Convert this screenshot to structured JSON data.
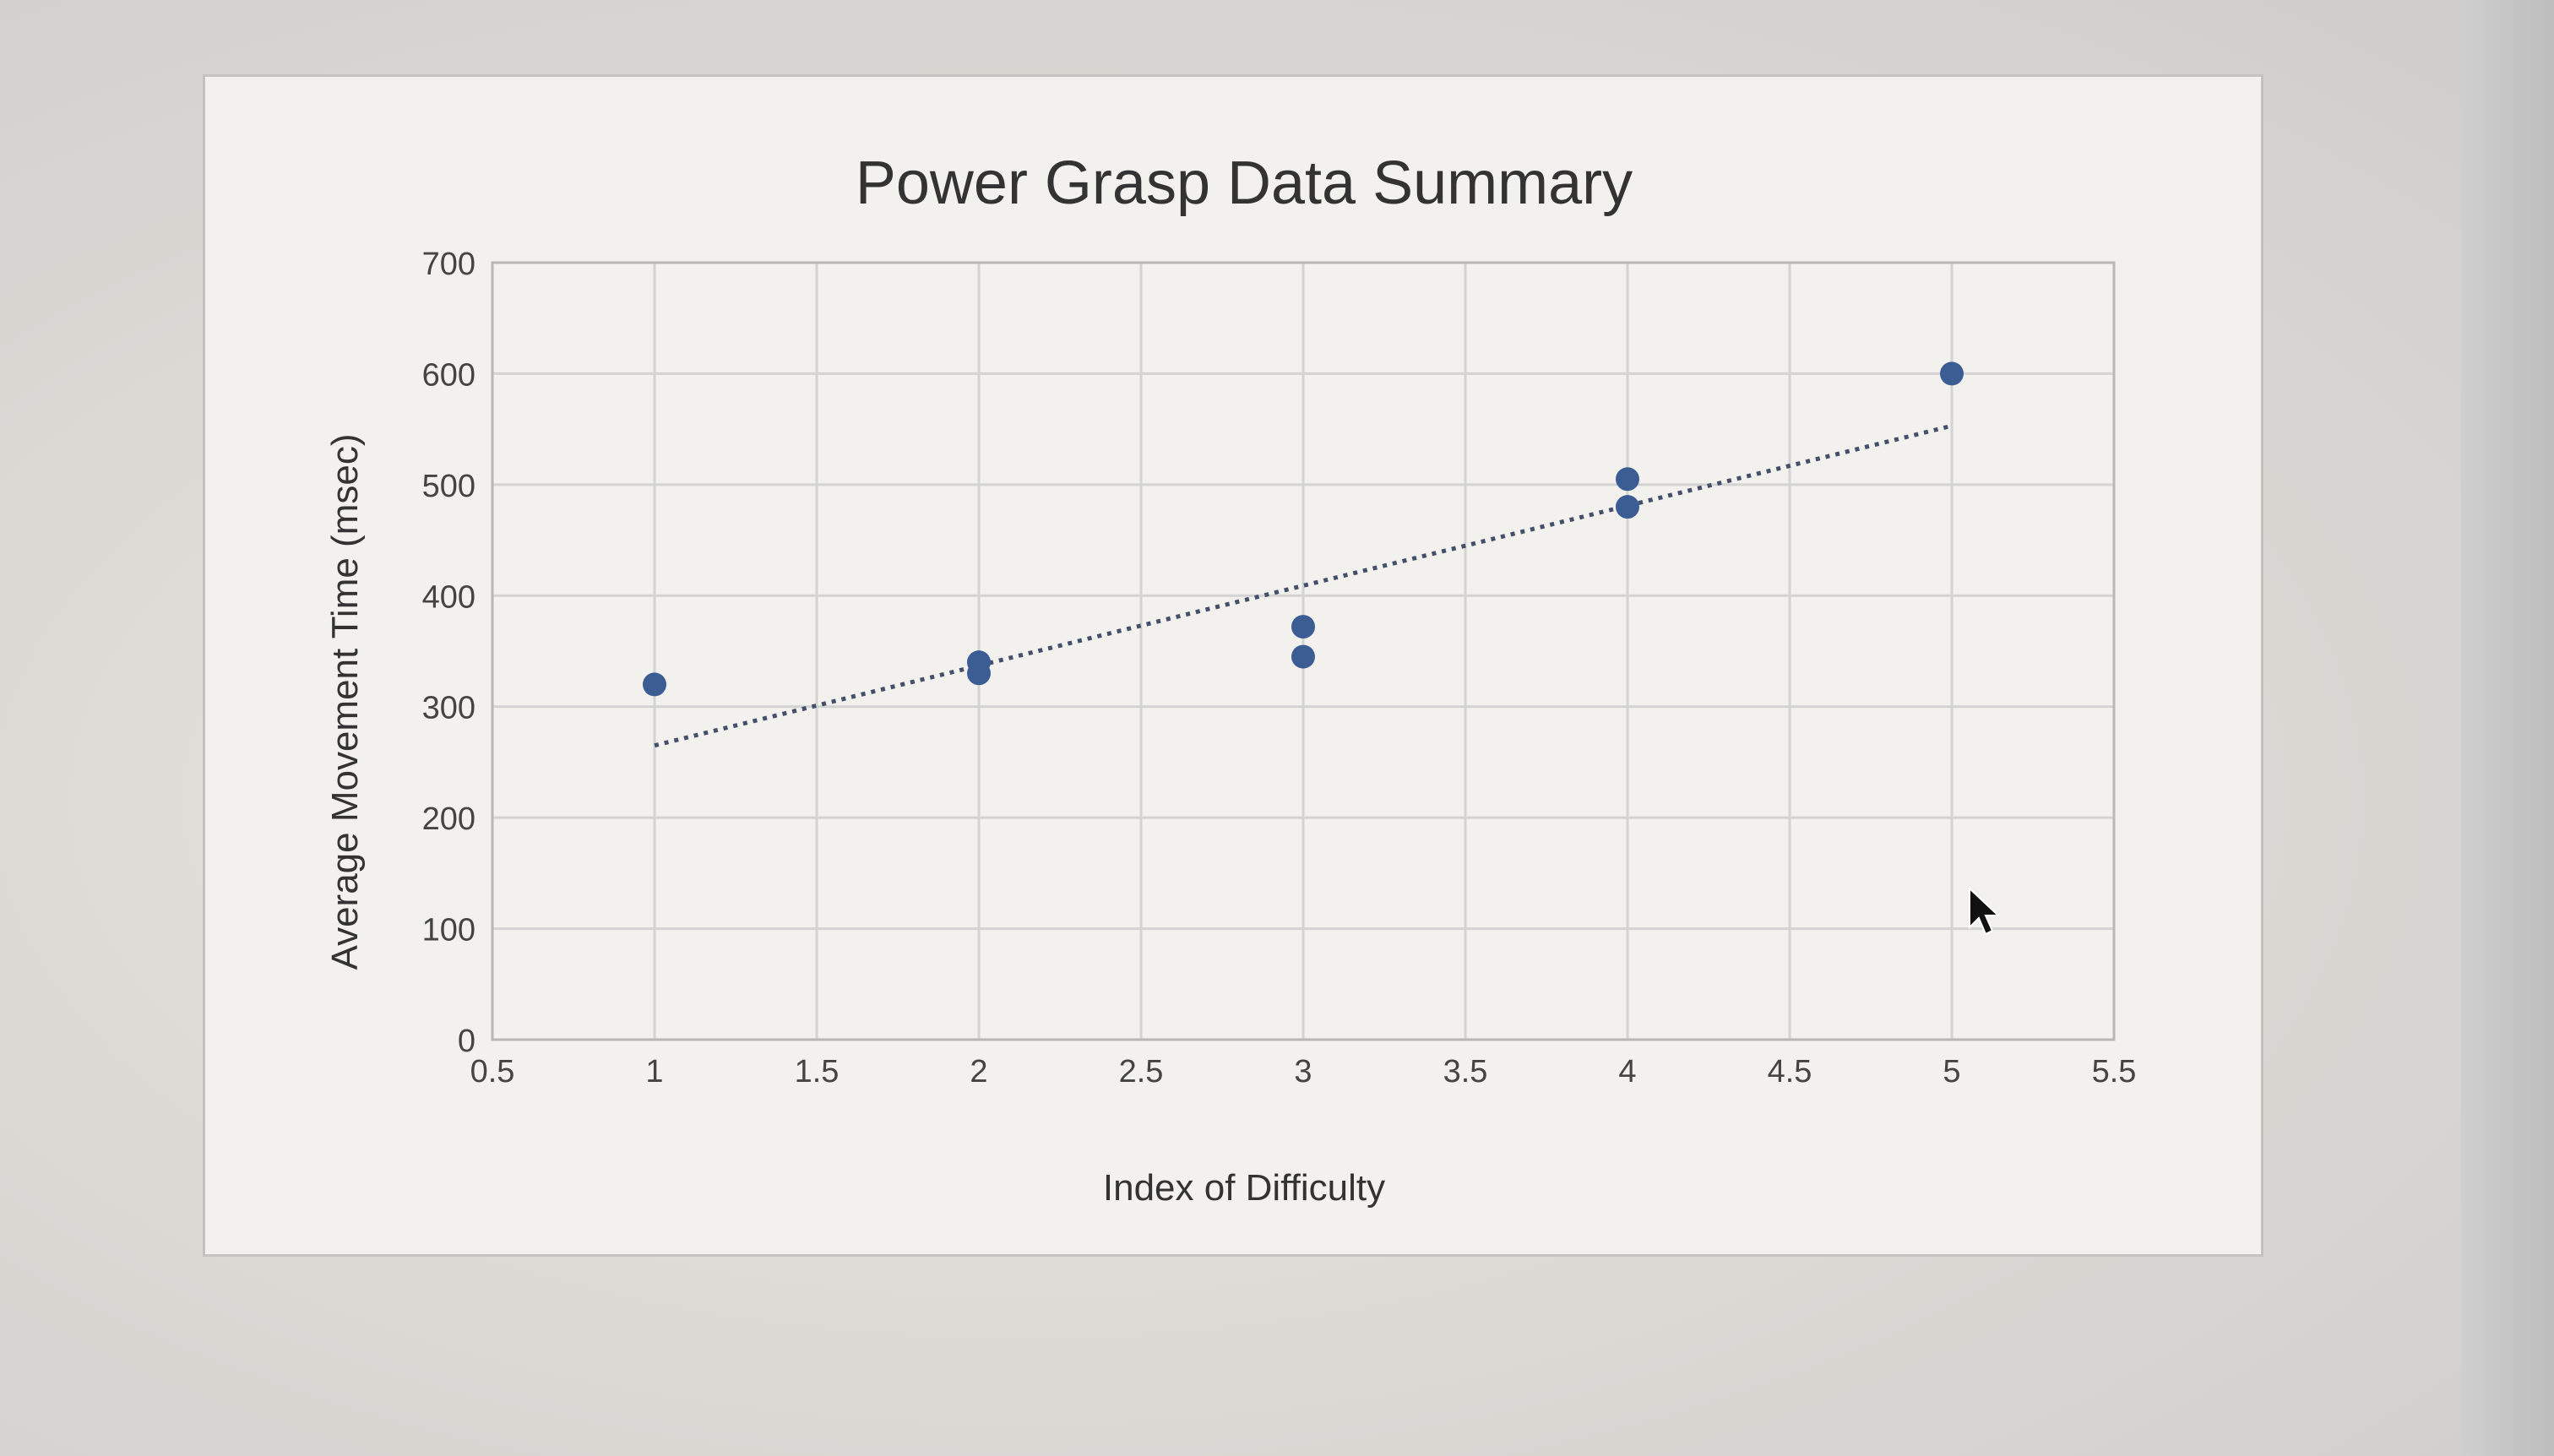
{
  "chart_data": {
    "type": "scatter",
    "title": "Power Grasp Data Summary",
    "xlabel": "Index of Difficulty",
    "ylabel": "Average Movement Time (msec)",
    "xlim": [
      0.5,
      5.5
    ],
    "ylim": [
      0,
      700
    ],
    "x_ticks": [
      "0.5",
      "1",
      "1.5",
      "2",
      "2.5",
      "3",
      "3.5",
      "4",
      "4.5",
      "5",
      "5.5"
    ],
    "y_ticks": [
      "0",
      "100",
      "200",
      "300",
      "400",
      "500",
      "600",
      "700"
    ],
    "grid": true,
    "legend": "none",
    "points": [
      {
        "x": 1.0,
        "y": 320
      },
      {
        "x": 2.0,
        "y": 330
      },
      {
        "x": 2.0,
        "y": 340
      },
      {
        "x": 3.0,
        "y": 345
      },
      {
        "x": 3.0,
        "y": 372
      },
      {
        "x": 4.0,
        "y": 480
      },
      {
        "x": 4.0,
        "y": 505
      },
      {
        "x": 5.0,
        "y": 600
      }
    ],
    "trendline": {
      "style": "dotted",
      "x": [
        1.0,
        5.0
      ],
      "y": [
        265,
        553
      ]
    },
    "colors": {
      "marker": "#3b5d94",
      "grid": "#d3d3d3",
      "trendline": "#44506a"
    }
  }
}
